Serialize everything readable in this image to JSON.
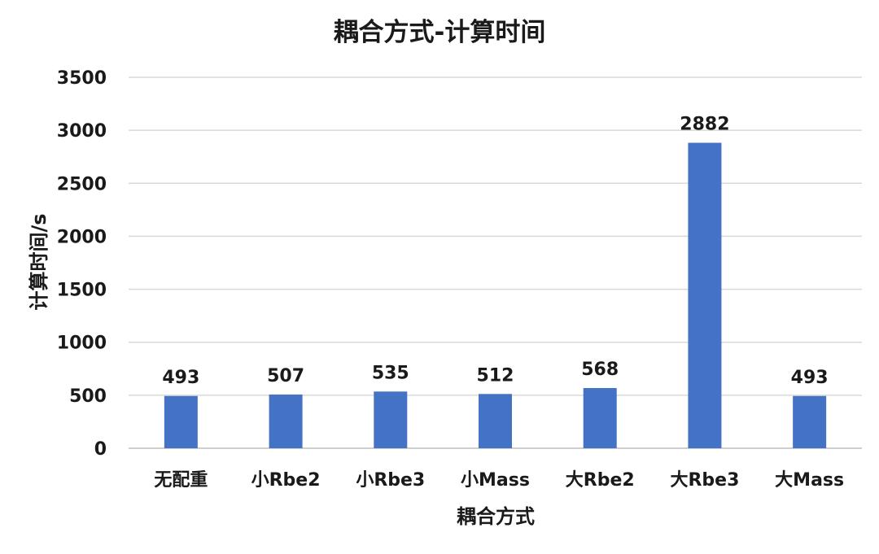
{
  "chart_data": {
    "type": "bar",
    "title": "耦合方式-计算时间",
    "xlabel": "耦合方式",
    "ylabel": "计算时间/s",
    "categories": [
      "无配重",
      "小Rbe2",
      "小Rbe3",
      "小Mass",
      "大Rbe2",
      "大Rbe3",
      "大Mass"
    ],
    "values": [
      493,
      507,
      535,
      512,
      568,
      2882,
      493
    ],
    "ylim": [
      0,
      3500
    ],
    "yticks": [
      0,
      500,
      1000,
      1500,
      2000,
      2500,
      3000,
      3500
    ],
    "grid": true,
    "legend": "none",
    "bar_color": "#4472c4"
  }
}
